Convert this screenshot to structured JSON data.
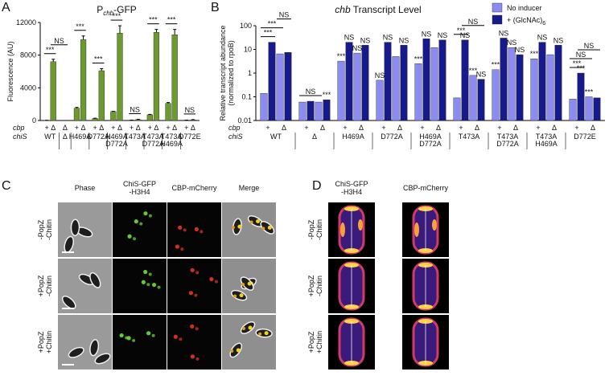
{
  "panels": {
    "a": "A",
    "b": "B",
    "c": "C",
    "d": "D"
  },
  "chart_data": [
    {
      "type": "bar",
      "title": "P",
      "title_sub": "chb",
      "title_end": "-GFP",
      "ylabel": "Fluorescence (AU)",
      "color": "#6b9a2e",
      "ylim": [
        0,
        12000
      ],
      "yticks": [
        0,
        4000,
        8000,
        12000
      ],
      "row_labels": [
        "cbp",
        "chiS"
      ],
      "groups": [
        {
          "chiS": [
            "WT"
          ],
          "cbp": [
            "+",
            "Δ"
          ],
          "values": [
            30,
            7200
          ],
          "errors": [
            0,
            300
          ]
        },
        {
          "chiS": [
            "Δ"
          ],
          "cbp": [
            "Δ"
          ],
          "values": [
            0
          ],
          "errors": [
            0
          ]
        },
        {
          "chiS": [
            "H469A"
          ],
          "cbp": [
            "+",
            "Δ"
          ],
          "values": [
            1500,
            9900
          ],
          "errors": [
            100,
            450
          ]
        },
        {
          "chiS": [
            "D772A"
          ],
          "cbp": [
            "+",
            "Δ"
          ],
          "values": [
            250,
            6100
          ],
          "errors": [
            30,
            250
          ]
        },
        {
          "chiS": [
            "H469A",
            "D772A"
          ],
          "cbp": [
            "+",
            "Δ"
          ],
          "values": [
            1100,
            10700
          ],
          "errors": [
            20,
            900
          ]
        },
        {
          "chiS": [
            "T473A"
          ],
          "cbp": [
            "+",
            "Δ"
          ],
          "values": [
            50,
            100
          ],
          "errors": [
            0,
            50
          ]
        },
        {
          "chiS": [
            "T473A",
            "D772A"
          ],
          "cbp": [
            "+",
            "Δ"
          ],
          "values": [
            700,
            10800
          ],
          "errors": [
            50,
            350
          ]
        },
        {
          "chiS": [
            "T473A",
            "H469A"
          ],
          "cbp": [
            "+",
            "Δ"
          ],
          "values": [
            2100,
            10500
          ],
          "errors": [
            100,
            650
          ]
        },
        {
          "chiS": [
            "D772E"
          ],
          "cbp": [
            "+",
            "Δ"
          ],
          "values": [
            50,
            80
          ],
          "errors": [
            0,
            30
          ]
        }
      ],
      "annotations": [
        {
          "text": "***",
          "bars": [
            0,
            1
          ]
        },
        {
          "text": "NS",
          "bars": [
            1,
            2
          ]
        },
        {
          "text": "***",
          "bars": [
            3,
            4
          ]
        },
        {
          "text": "***",
          "bars": [
            5,
            6
          ]
        },
        {
          "text": "***",
          "bars": [
            7,
            8
          ]
        },
        {
          "text": "NS",
          "bars": [
            9,
            10
          ]
        },
        {
          "text": "***",
          "bars": [
            11,
            12
          ]
        },
        {
          "text": "***",
          "bars": [
            13,
            14
          ]
        },
        {
          "text": "NS",
          "bars": [
            15,
            16
          ]
        }
      ]
    },
    {
      "type": "bar",
      "log_scale": true,
      "title_italic": "chb",
      "title": "Transcript Level",
      "ylabel": [
        "Relative transcript abundance",
        "(normalized to rpoB)"
      ],
      "ylim": [
        0.01,
        100
      ],
      "yticks": [
        0.01,
        0.1,
        1,
        10,
        100
      ],
      "row_labels": [
        "cbp",
        "chiS"
      ],
      "groups": [
        {
          "chiS": [
            "WT"
          ],
          "cbp": [
            "+",
            "Δ"
          ]
        },
        {
          "chiS": [
            "Δ"
          ],
          "cbp": [
            "+",
            "Δ"
          ]
        },
        {
          "chiS": [
            "H469A"
          ],
          "cbp": [
            "+",
            "Δ"
          ]
        },
        {
          "chiS": [
            "D772A"
          ],
          "cbp": [
            "+",
            "Δ"
          ]
        },
        {
          "chiS": [
            "H469A",
            "D772A"
          ],
          "cbp": [
            "+",
            "Δ"
          ]
        },
        {
          "chiS": [
            "T473A"
          ],
          "cbp": [
            "+",
            "Δ"
          ]
        },
        {
          "chiS": [
            "T473A",
            "D772A"
          ],
          "cbp": [
            "+",
            "Δ"
          ]
        },
        {
          "chiS": [
            "T473A",
            "H469A"
          ],
          "cbp": [
            "+",
            "Δ"
          ]
        },
        {
          "chiS": [
            "D772E"
          ],
          "cbp": [
            "+",
            "Δ"
          ]
        }
      ],
      "series": [
        {
          "name": "No inducer",
          "color": "#8c8cf0",
          "values": [
            0.14,
            6.5,
            0.06,
            0.06,
            3.2,
            7,
            0.5,
            5,
            2.5,
            12,
            0.09,
            0.8,
            1.4,
            12,
            4,
            6,
            0.08,
            0.1
          ],
          "labels": [
            null,
            null,
            null,
            null,
            "***",
            "NS",
            "NS",
            null,
            "***",
            null,
            null,
            "***",
            "***",
            "NS",
            "***",
            null,
            null,
            "***"
          ]
        },
        {
          "name": "+ (GlcNAc)",
          "name_sub": "6",
          "color": "#161a8a",
          "values": [
            20,
            7.5,
            0.065,
            0.075,
            20,
            15,
            20,
            15,
            28,
            25,
            25,
            0.55,
            30,
            6,
            20,
            15,
            1,
            0.09
          ],
          "labels": [
            null,
            null,
            null,
            "***",
            "NS",
            "NS",
            "NS",
            "NS",
            "NS",
            "NS",
            "NS",
            "NS",
            "NS",
            "NS",
            "NS",
            "NS",
            "***",
            null
          ]
        }
      ],
      "annotations": [
        {
          "text": "***",
          "bars": [
            0,
            1
          ]
        },
        {
          "text": "***",
          "bars": [
            0,
            2
          ]
        },
        {
          "text": "NS",
          "bars": [
            2,
            3
          ]
        },
        {
          "text": "NS",
          "bars": [
            4,
            6
          ]
        },
        {
          "text": "***",
          "bars": [
            20,
            21
          ]
        },
        {
          "text": "NS",
          "bars": [
            21,
            23
          ]
        },
        {
          "text": "***",
          "bars": [
            32,
            33
          ]
        },
        {
          "text": "NS",
          "bars": [
            32,
            34
          ]
        },
        {
          "text": "NS",
          "bars": [
            33,
            35
          ]
        }
      ]
    }
  ],
  "micrographs": {
    "columns": [
      "Phase",
      [
        "ChiS-GFP",
        "-H3H4"
      ],
      "CBP-mCherry",
      "Merge"
    ],
    "rows": [
      [
        "-PopZ",
        "-Chitin"
      ],
      [
        "+PopZ",
        "-Chitin"
      ],
      [
        "+PopZ",
        "+Chitin"
      ]
    ]
  },
  "heatmaps": {
    "columns": [
      [
        "ChiS-GFP",
        "-H3H4"
      ],
      "CBP-mCherry"
    ],
    "rows": [
      [
        "-PopZ",
        "-Chitin"
      ],
      [
        "+PopZ",
        "-Chitin"
      ],
      [
        "+PopZ",
        "+Chitin"
      ]
    ]
  }
}
